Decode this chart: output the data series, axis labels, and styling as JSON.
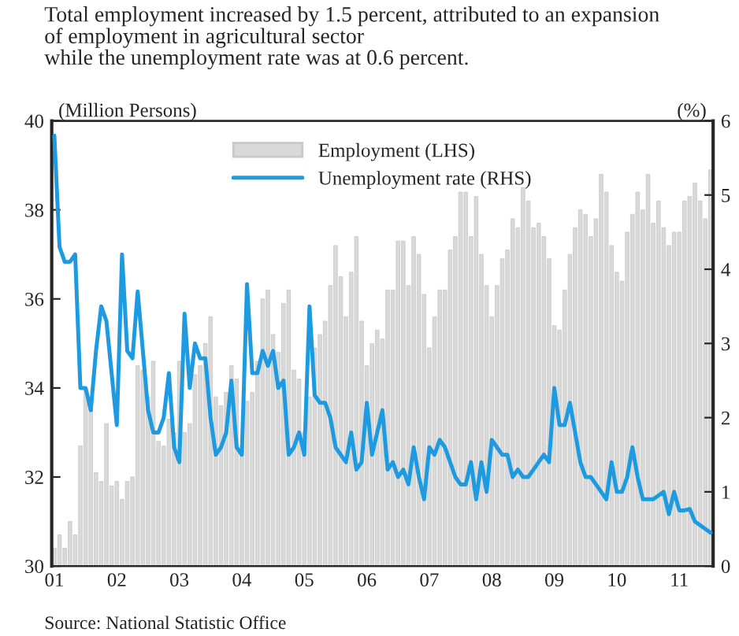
{
  "chart_data": {
    "type": "bar",
    "title": "Total employment increased by 1.5 percent, attributed to an expansion\nof employment in agricultural sector\nwhile the unemployment rate was at 0.6 percent.",
    "ylabel": "(Million Persons)",
    "y2label": "(%)",
    "annotations": [
      "Source: National Statistic Office"
    ],
    "categories": [
      "01",
      null,
      null,
      null,
      null,
      null,
      null,
      null,
      null,
      null,
      null,
      null,
      "02",
      null,
      null,
      null,
      null,
      null,
      null,
      null,
      null,
      null,
      null,
      null,
      "03",
      null,
      null,
      null,
      null,
      null,
      null,
      null,
      null,
      null,
      null,
      null,
      "04",
      null,
      null,
      null,
      null,
      null,
      null,
      null,
      null,
      null,
      null,
      null,
      "05",
      null,
      null,
      null,
      null,
      null,
      null,
      null,
      null,
      null,
      null,
      null,
      "06",
      null,
      null,
      null,
      null,
      null,
      null,
      null,
      null,
      null,
      null,
      null,
      "07",
      null,
      null,
      null,
      null,
      null,
      null,
      null,
      null,
      null,
      null,
      null,
      "08",
      null,
      null,
      null,
      null,
      null,
      null,
      null,
      null,
      null,
      null,
      null,
      "09",
      null,
      null,
      null,
      null,
      null,
      null,
      null,
      null,
      null,
      null,
      null,
      "10",
      null,
      null,
      null,
      null,
      null,
      null,
      null,
      null,
      null,
      null,
      null,
      "11",
      null,
      null,
      null,
      null,
      null,
      null
    ],
    "series": [
      {
        "name": "Employment (LHS)",
        "color": "#d9d9d9",
        "values": [
          30.4,
          30.7,
          30.4,
          31.0,
          30.7,
          32.7,
          34.0,
          33.6,
          32.1,
          31.9,
          33.2,
          31.8,
          31.9,
          31.5,
          31.9,
          32.0,
          34.5,
          34.4,
          33.8,
          34.6,
          32.8,
          32.7,
          33.3,
          33.0,
          34.6,
          33.0,
          33.2,
          34.3,
          34.5,
          35.0,
          35.6,
          33.8,
          33.6,
          33.9,
          34.5,
          34.2,
          32.7,
          33.7,
          33.9,
          34.6,
          36.0,
          36.2,
          35.2,
          34.8,
          35.9,
          36.2,
          34.4,
          34.2,
          33.0,
          33.8,
          34.9,
          35.2,
          35.5,
          36.3,
          37.2,
          36.5,
          35.6,
          36.6,
          37.4,
          35.5,
          34.5,
          35.0,
          35.3,
          35.1,
          36.2,
          36.2,
          37.3,
          37.3,
          36.3,
          37.4,
          37.0,
          36.1,
          34.9,
          35.6,
          36.2,
          36.2,
          37.1,
          37.4,
          38.4,
          38.4,
          37.4,
          38.3,
          37.0,
          36.3,
          35.6,
          36.3,
          36.9,
          37.1,
          37.8,
          37.6,
          38.5,
          38.2,
          37.6,
          37.7,
          37.4,
          36.9,
          35.4,
          35.3,
          36.2,
          37.0,
          37.6,
          38.0,
          37.9,
          37.4,
          37.8,
          38.8,
          38.4,
          37.2,
          36.6,
          36.4,
          37.5,
          37.9,
          38.4,
          38.0,
          38.8,
          37.7,
          38.2,
          37.6,
          37.2,
          37.5,
          37.5,
          38.2,
          38.3,
          38.6,
          38.2,
          37.8,
          38.9
        ]
      },
      {
        "name": "Unemployment rate (RHS)",
        "type": "line",
        "axis": "y2",
        "color": "#1e9be0",
        "values": [
          5.8,
          4.3,
          4.1,
          4.1,
          4.2,
          2.4,
          2.4,
          2.1,
          2.9,
          3.5,
          3.3,
          2.6,
          1.9,
          4.2,
          2.9,
          2.8,
          3.7,
          2.9,
          2.1,
          1.8,
          1.8,
          2.0,
          2.6,
          1.6,
          1.4,
          3.4,
          2.4,
          3.0,
          2.8,
          2.8,
          2.0,
          1.5,
          1.6,
          1.8,
          2.5,
          1.6,
          1.5,
          3.8,
          2.6,
          2.6,
          2.9,
          2.7,
          2.9,
          2.4,
          2.5,
          1.5,
          1.6,
          1.8,
          1.5,
          3.5,
          2.3,
          2.2,
          2.2,
          2.0,
          1.6,
          1.5,
          1.4,
          1.8,
          1.3,
          1.4,
          2.2,
          1.5,
          1.8,
          2.1,
          1.3,
          1.4,
          1.2,
          1.3,
          1.1,
          1.6,
          1.2,
          0.9,
          1.6,
          1.5,
          1.7,
          1.6,
          1.4,
          1.2,
          1.1,
          1.1,
          1.4,
          0.9,
          1.4,
          1.0,
          1.7,
          1.6,
          1.5,
          1.5,
          1.2,
          1.3,
          1.2,
          1.2,
          1.3,
          1.4,
          1.5,
          1.4,
          2.4,
          1.9,
          1.9,
          2.2,
          1.8,
          1.4,
          1.2,
          1.2,
          1.1,
          1.0,
          0.9,
          1.4,
          1.0,
          1.0,
          1.2,
          1.6,
          1.2,
          0.9,
          0.9,
          0.9,
          0.95,
          1.0,
          0.7,
          1.0,
          0.75,
          0.75,
          0.77,
          0.6,
          0.55,
          0.5,
          0.45
        ]
      }
    ],
    "ylim": [
      30,
      40
    ],
    "yticks": [
      30,
      32,
      34,
      36,
      38,
      40
    ],
    "y2lim": [
      0,
      6
    ],
    "y2ticks": [
      0,
      1,
      2,
      3,
      4,
      5,
      6
    ],
    "legend": "top",
    "grid": false,
    "marker": "none",
    "line_style": "solid"
  }
}
